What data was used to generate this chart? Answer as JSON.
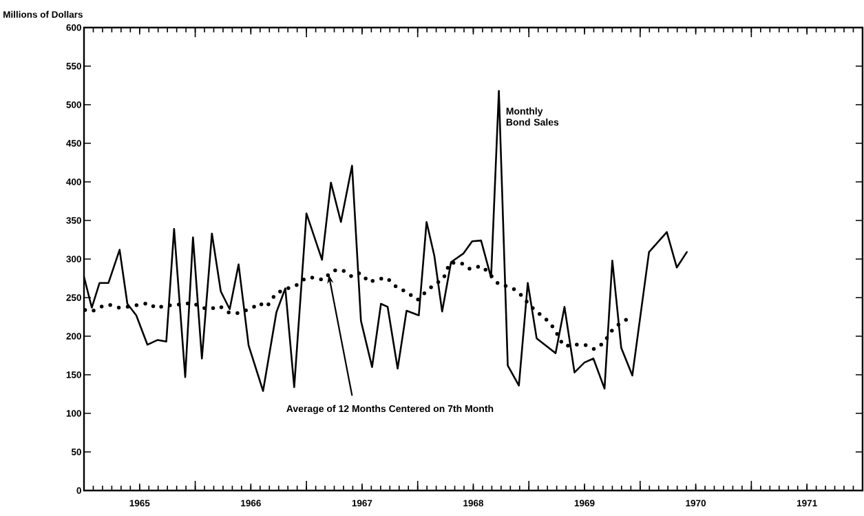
{
  "chart_data": {
    "type": "line",
    "ylabel": "Millions of Dollars",
    "xlim": [
      1965,
      1972
    ],
    "ylim": [
      0,
      600
    ],
    "xticks": [
      {
        "value": 1965.5,
        "label": "1965"
      },
      {
        "value": 1966.5,
        "label": "1966"
      },
      {
        "value": 1967.5,
        "label": "1967"
      },
      {
        "value": 1968.5,
        "label": "1968"
      },
      {
        "value": 1969.5,
        "label": "1969"
      },
      {
        "value": 1970.5,
        "label": "1970"
      },
      {
        "value": 1971.5,
        "label": "1971"
      },
      {
        "value": 1966,
        "label": null
      },
      {
        "value": 1967,
        "label": null
      },
      {
        "value": 1968,
        "label": null
      },
      {
        "value": 1969,
        "label": null
      },
      {
        "value": 1970,
        "label": null
      },
      {
        "value": 1971,
        "label": null
      }
    ],
    "yticks": [
      0,
      50,
      100,
      150,
      200,
      250,
      300,
      350,
      400,
      450,
      500,
      550,
      600
    ],
    "grid": false,
    "legend": false,
    "annotations": [
      {
        "text": "Monthly Bond Sales",
        "x": 1968.73,
        "y": 518
      },
      {
        "text": "Average of 12 Months Centered on 7th Month",
        "x": 1967.2,
        "y": 280
      }
    ],
    "series": [
      {
        "color": "#000000",
        "line_style": "solid",
        "x": [
          1965.0,
          1965.07,
          1965.14,
          1965.22,
          1965.32,
          1965.39,
          1965.47,
          1965.57,
          1965.66,
          1965.74,
          1965.81,
          1965.91,
          1965.98,
          1966.06,
          1966.15,
          1966.23,
          1966.31,
          1966.39,
          1966.48,
          1966.61,
          1966.73,
          1966.81,
          1966.89,
          1967.0,
          1967.14,
          1967.22,
          1967.31,
          1967.41,
          1967.49,
          1967.59,
          1967.67,
          1967.73,
          1967.82,
          1967.9,
          1968.01,
          1968.08,
          1968.15,
          1968.22,
          1968.3,
          1968.41,
          1968.49,
          1968.57,
          1968.66,
          1968.73,
          1968.81,
          1968.91,
          1968.99,
          1969.07,
          1969.24,
          1969.32,
          1969.41,
          1969.5,
          1969.58,
          1969.68,
          1969.75,
          1969.83,
          1969.93,
          1970.08,
          1970.24,
          1970.33,
          1970.42
        ],
        "values": [
          277,
          237,
          269,
          269,
          312,
          242,
          227,
          189,
          195,
          193,
          339,
          147,
          328,
          171,
          333,
          258,
          235,
          293,
          188,
          129,
          231,
          262,
          134,
          359,
          299,
          399,
          348,
          421,
          220,
          160,
          242,
          238,
          158,
          233,
          227,
          348,
          304,
          232,
          296,
          307,
          323,
          324,
          276,
          518,
          162,
          136,
          269,
          197,
          178,
          238,
          153,
          166,
          171,
          132,
          298,
          185,
          149,
          309,
          335,
          289,
          309
        ]
      },
      {
        "color": "#000000",
        "line_style": "dotted",
        "x": [
          1965.01,
          1965.07,
          1965.15,
          1965.22,
          1965.31,
          1965.39,
          1965.47,
          1965.58,
          1965.65,
          1965.73,
          1965.8,
          1965.89,
          1965.98,
          1966.06,
          1966.13,
          1966.22,
          1966.31,
          1966.39,
          1966.52,
          1966.57,
          1966.64,
          1966.69,
          1966.72,
          1966.81,
          1966.9,
          1966.99,
          1967.07,
          1967.15,
          1967.2,
          1967.24,
          1967.32,
          1967.41,
          1967.48,
          1967.52,
          1967.56,
          1967.65,
          1967.72,
          1967.78,
          1967.82,
          1967.9,
          1967.95,
          1968.0,
          1968.07,
          1968.15,
          1968.23,
          1968.26,
          1968.29,
          1968.39,
          1968.47,
          1968.57,
          1968.62,
          1968.73,
          1968.8,
          1968.88,
          1968.94,
          1968.99,
          1969.03,
          1969.07,
          1969.12,
          1969.16,
          1969.2,
          1969.24,
          1969.28,
          1969.32,
          1969.42,
          1969.5,
          1969.59,
          1969.68,
          1969.71,
          1969.75,
          1969.83,
          1969.91
        ],
        "values": [
          234,
          232,
          238,
          241,
          237,
          238,
          240,
          243,
          236,
          240,
          240,
          242,
          243,
          237,
          235,
          239,
          230,
          230,
          237,
          243,
          238,
          247,
          255,
          261,
          265,
          275,
          276,
          273,
          280,
          285,
          286,
          277,
          282,
          277,
          270,
          274,
          276,
          268,
          262,
          258,
          252,
          247,
          257,
          267,
          274,
          285,
          295,
          295,
          287,
          291,
          285,
          267,
          265,
          260,
          252,
          243,
          237,
          232,
          226,
          221,
          215,
          207,
          195,
          187,
          189,
          189,
          183,
          192,
          200,
          208,
          218,
          224
        ]
      }
    ]
  }
}
